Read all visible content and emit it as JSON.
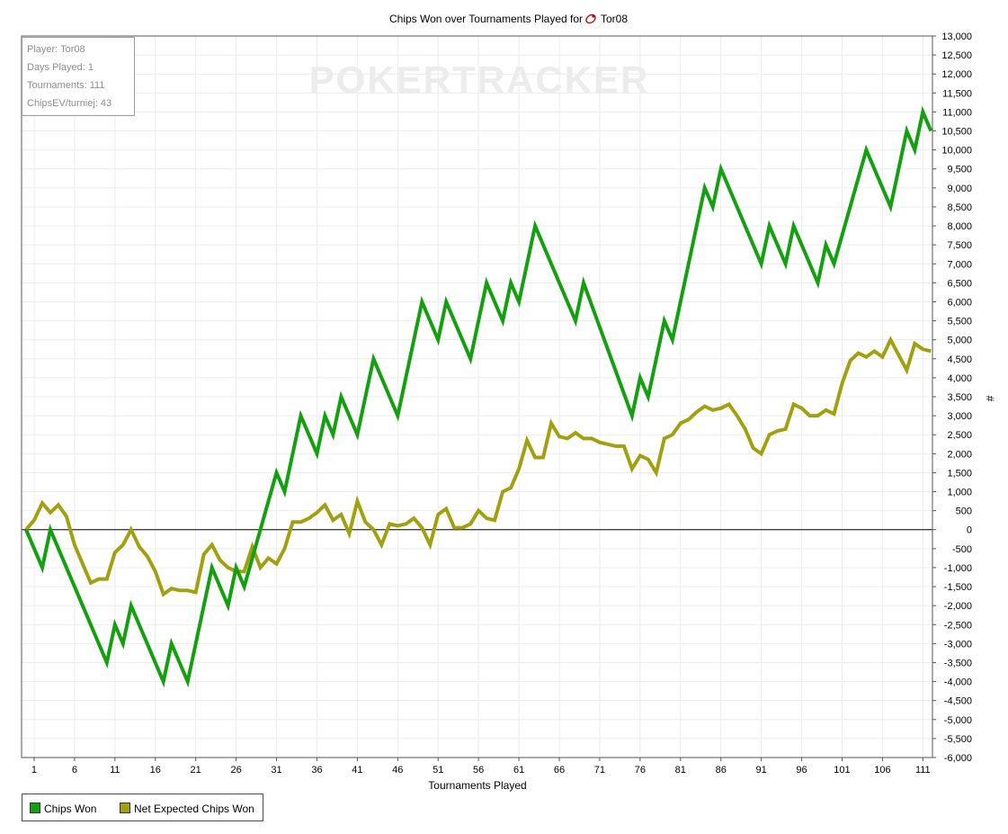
{
  "chart_data": {
    "type": "line",
    "title": "Chips Won over Tournaments Played for",
    "title_player": "Tor08",
    "xlabel": "Tournaments Played",
    "ylabel": "#",
    "xlim": [
      1,
      111
    ],
    "ylim": [
      -6000,
      13000
    ],
    "x_ticks": [
      1,
      6,
      11,
      16,
      21,
      26,
      31,
      36,
      41,
      46,
      51,
      56,
      61,
      66,
      71,
      76,
      81,
      86,
      91,
      96,
      101,
      106,
      111
    ],
    "y_ticks": [
      13000,
      12500,
      12000,
      11500,
      11000,
      10500,
      10000,
      9500,
      9000,
      8500,
      8000,
      7500,
      7000,
      6500,
      6000,
      5500,
      5000,
      4500,
      4000,
      3500,
      3000,
      2500,
      2000,
      1500,
      1000,
      500,
      0,
      -500,
      -1000,
      -1500,
      -2000,
      -2500,
      -3000,
      -3500,
      -4000,
      -4500,
      -5000,
      -5500,
      -6000
    ],
    "grid": true,
    "series": [
      {
        "name": "Chips Won",
        "color": "#13a00f",
        "points": [
          [
            0,
            0
          ],
          [
            2,
            -1000
          ],
          [
            3,
            0
          ],
          [
            10,
            -3500
          ],
          [
            11,
            -2500
          ],
          [
            12,
            -3000
          ],
          [
            13,
            -2000
          ],
          [
            17,
            -4000
          ],
          [
            18,
            -3000
          ],
          [
            20,
            -4000
          ],
          [
            23,
            -1000
          ],
          [
            25,
            -2000
          ],
          [
            26,
            -1000
          ],
          [
            27,
            -1500
          ],
          [
            31,
            1500
          ],
          [
            32,
            1000
          ],
          [
            34,
            3000
          ],
          [
            36,
            2000
          ],
          [
            37,
            3000
          ],
          [
            38,
            2500
          ],
          [
            39,
            3500
          ],
          [
            41,
            2500
          ],
          [
            43,
            4500
          ],
          [
            46,
            3000
          ],
          [
            49,
            6000
          ],
          [
            51,
            5000
          ],
          [
            52,
            6000
          ],
          [
            55,
            4500
          ],
          [
            57,
            6500
          ],
          [
            59,
            5500
          ],
          [
            60,
            6500
          ],
          [
            61,
            6000
          ],
          [
            63,
            8000
          ],
          [
            68,
            5500
          ],
          [
            69,
            6500
          ],
          [
            75,
            3000
          ],
          [
            76,
            4000
          ],
          [
            77,
            3500
          ],
          [
            79,
            5500
          ],
          [
            80,
            5000
          ],
          [
            84,
            9000
          ],
          [
            85,
            8500
          ],
          [
            86,
            9500
          ],
          [
            91,
            7000
          ],
          [
            92,
            8000
          ],
          [
            94,
            7000
          ],
          [
            95,
            8000
          ],
          [
            98,
            6500
          ],
          [
            99,
            7500
          ],
          [
            100,
            7000
          ],
          [
            104,
            10000
          ],
          [
            107,
            8500
          ],
          [
            109,
            10500
          ],
          [
            110,
            10000
          ],
          [
            111,
            11000
          ],
          [
            112,
            10500
          ]
        ]
      },
      {
        "name": "Net Expected Chips Won",
        "color": "#a1a010",
        "points": [
          [
            0,
            0
          ],
          [
            1,
            250
          ],
          [
            2,
            700
          ],
          [
            3,
            450
          ],
          [
            4,
            650
          ],
          [
            5,
            350
          ],
          [
            6,
            -400
          ],
          [
            7,
            -900
          ],
          [
            8,
            -1400
          ],
          [
            9,
            -1300
          ],
          [
            10,
            -1300
          ],
          [
            11,
            -600
          ],
          [
            12,
            -400
          ],
          [
            13,
            0
          ],
          [
            14,
            -450
          ],
          [
            15,
            -700
          ],
          [
            16,
            -1100
          ],
          [
            17,
            -1700
          ],
          [
            18,
            -1550
          ],
          [
            19,
            -1600
          ],
          [
            20,
            -1600
          ],
          [
            21,
            -1650
          ],
          [
            22,
            -650
          ],
          [
            23,
            -400
          ],
          [
            24,
            -800
          ],
          [
            25,
            -1000
          ],
          [
            26,
            -1100
          ],
          [
            27,
            -1100
          ],
          [
            28,
            -450
          ],
          [
            29,
            -1000
          ],
          [
            30,
            -750
          ],
          [
            31,
            -900
          ],
          [
            32,
            -500
          ],
          [
            33,
            200
          ],
          [
            34,
            200
          ],
          [
            35,
            300
          ],
          [
            36,
            450
          ],
          [
            37,
            650
          ],
          [
            38,
            250
          ],
          [
            39,
            400
          ],
          [
            40,
            -100
          ],
          [
            41,
            750
          ],
          [
            42,
            200
          ],
          [
            43,
            0
          ],
          [
            44,
            -400
          ],
          [
            45,
            150
          ],
          [
            46,
            100
          ],
          [
            47,
            150
          ],
          [
            48,
            300
          ],
          [
            49,
            50
          ],
          [
            50,
            -400
          ],
          [
            51,
            400
          ],
          [
            52,
            550
          ],
          [
            53,
            50
          ],
          [
            54,
            50
          ],
          [
            55,
            150
          ],
          [
            56,
            500
          ],
          [
            57,
            300
          ],
          [
            58,
            250
          ],
          [
            59,
            1000
          ],
          [
            60,
            1100
          ],
          [
            61,
            1600
          ],
          [
            62,
            2350
          ],
          [
            63,
            1900
          ],
          [
            64,
            1900
          ],
          [
            65,
            2800
          ],
          [
            66,
            2450
          ],
          [
            67,
            2400
          ],
          [
            68,
            2550
          ],
          [
            69,
            2400
          ],
          [
            70,
            2400
          ],
          [
            71,
            2300
          ],
          [
            72,
            2250
          ],
          [
            73,
            2200
          ],
          [
            74,
            2200
          ],
          [
            75,
            1600
          ],
          [
            76,
            1950
          ],
          [
            77,
            1850
          ],
          [
            78,
            1500
          ],
          [
            79,
            2400
          ],
          [
            80,
            2500
          ],
          [
            81,
            2800
          ],
          [
            82,
            2900
          ],
          [
            83,
            3100
          ],
          [
            84,
            3250
          ],
          [
            85,
            3150
          ],
          [
            86,
            3200
          ],
          [
            87,
            3300
          ],
          [
            88,
            3000
          ],
          [
            89,
            2650
          ],
          [
            90,
            2150
          ],
          [
            91,
            2000
          ],
          [
            92,
            2500
          ],
          [
            93,
            2600
          ],
          [
            94,
            2650
          ],
          [
            95,
            3300
          ],
          [
            96,
            3200
          ],
          [
            97,
            3000
          ],
          [
            98,
            3000
          ],
          [
            99,
            3150
          ],
          [
            100,
            3050
          ],
          [
            101,
            3850
          ],
          [
            102,
            4450
          ],
          [
            103,
            4650
          ],
          [
            104,
            4550
          ],
          [
            105,
            4700
          ],
          [
            106,
            4550
          ],
          [
            107,
            5000
          ],
          [
            108,
            4600
          ],
          [
            109,
            4200
          ],
          [
            110,
            4900
          ],
          [
            111,
            4750
          ],
          [
            112,
            4700
          ]
        ]
      }
    ],
    "legend_position": "bottom-left"
  },
  "stats": {
    "player": "Player: Tor08",
    "days_played": "Days Played: 1",
    "tournaments": "Tournaments: 111",
    "chips_ev": "ChipsEV/turniej: 43"
  },
  "watermark": "POKERTRACKER",
  "legend": {
    "chips_won": "Chips Won",
    "net_expected": "Net Expected Chips Won"
  }
}
